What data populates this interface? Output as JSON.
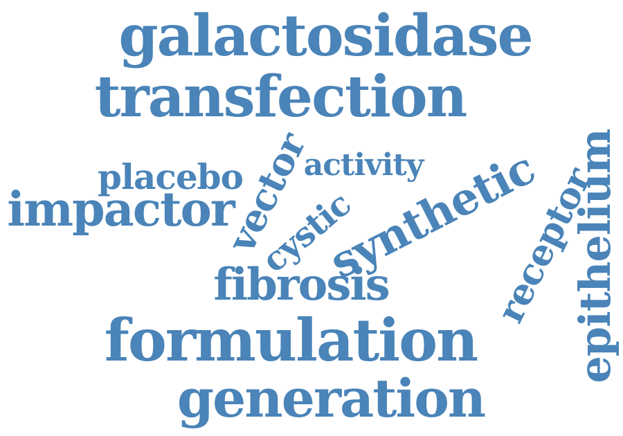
{
  "colors": {
    "background": "#ffffff",
    "word": "#4a84b8"
  },
  "words": {
    "galactosidase": "galactosidase",
    "transfection": "transfection",
    "placebo": "placebo",
    "activity": "activity",
    "impactor": "impactor",
    "vector": "vector",
    "cystic": "cystic",
    "synthetic": "synthetic",
    "receptor": "receptor",
    "epithelium": "epithelium",
    "fibrosis": "fibrosis",
    "formulation": "formulation",
    "generation": "generation"
  }
}
